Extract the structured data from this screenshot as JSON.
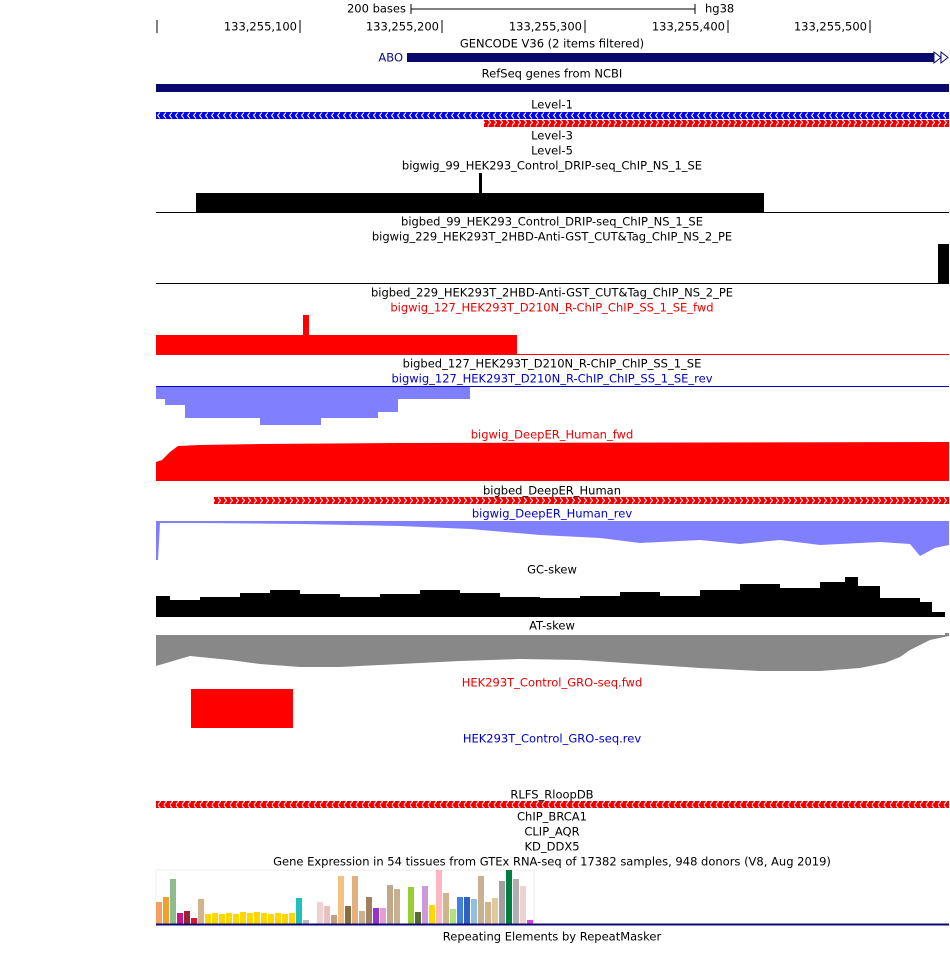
{
  "ruler": {
    "scale_label": "200 bases",
    "assembly": "hg38",
    "positions": [
      "133,255,100",
      "133,255,200",
      "133,255,300",
      "133,255,400",
      "133,255,500"
    ]
  },
  "gene_label": "ABO",
  "tracks": [
    "GENCODE V36 (2 items filtered)",
    "RefSeq genes from NCBI",
    "Level-1",
    "Level-3",
    "Level-5",
    "bigwig_99_HEK293_Control_DRIP-seq_ChIP_NS_1_SE",
    "bigbed_99_HEK293_Control_DRIP-seq_ChIP_NS_1_SE",
    "bigwig_229_HEK293T_2HBD-Anti-GST_CUT&Tag_ChIP_NS_2_PE",
    "bigbed_229_HEK293T_2HBD-Anti-GST_CUT&Tag_ChIP_NS_2_PE",
    "bigwig_127_HEK293T_D210N_R-ChIP_ChIP_SS_1_SE_fwd",
    "bigbed_127_HEK293T_D210N_R-ChIP_ChIP_SS_1_SE",
    "bigwig_127_HEK293T_D210N_R-ChIP_ChIP_SS_1_SE_rev",
    "bigwig_DeepER_Human_fwd",
    "bigbed_DeepER_Human",
    "bigwig_DeepER_Human_rev",
    "GC-skew",
    "AT-skew",
    "HEK293T_Control_GRO-seq.fwd",
    "HEK293T_Control_GRO-seq.rev",
    "RLFS_RloopDB",
    "ChIP_BRCA1",
    "CLIP_AQR",
    "KD_DDX5",
    "Gene Expression in 54 tissues from GTEx RNA-seq of 17382 samples, 948 donors (V8, Aug 2019)",
    "Repeating Elements by RepeatMasker"
  ]
}
